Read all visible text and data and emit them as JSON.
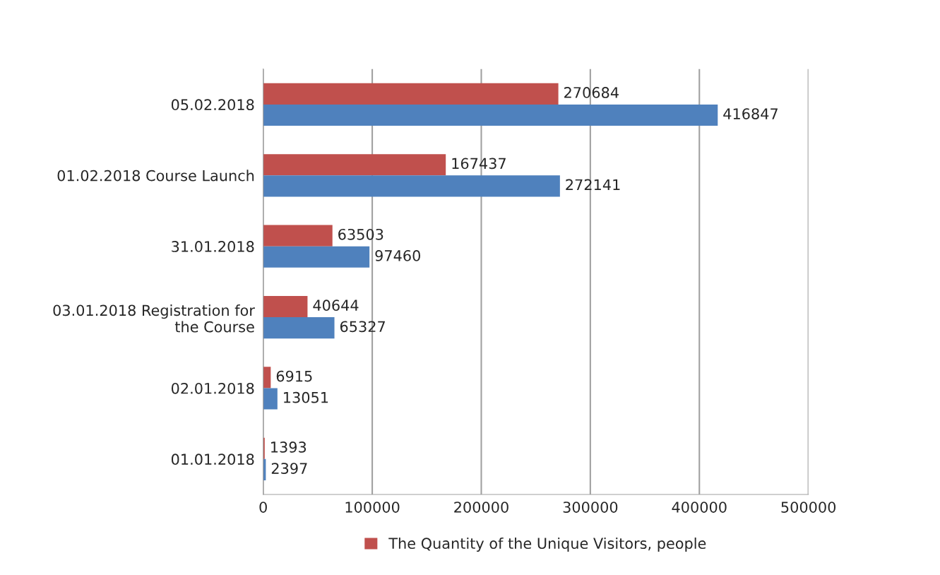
{
  "chart_data": {
    "type": "bar",
    "orientation": "horizontal",
    "categories": [
      "05.02.2018",
      "01.02.2018 Course Launch",
      "31.01.2018",
      "03.01.2018 Registration for\nthe Course",
      "02.01.2018",
      "01.01.2018"
    ],
    "series": [
      {
        "name": "The Quantity of the Unique Visitors, people",
        "color": "#c0504d",
        "values": [
          270684,
          167437,
          63503,
          40644,
          6915,
          1393
        ]
      },
      {
        "color": "#4f81bd",
        "values": [
          416847,
          272141,
          97460,
          65327,
          13051,
          2397
        ]
      }
    ],
    "xlim": [
      0,
      500000
    ],
    "xticks": [
      0,
      100000,
      200000,
      300000,
      400000,
      500000
    ],
    "grid": "x",
    "legend": "bottom",
    "data_labels": true
  }
}
